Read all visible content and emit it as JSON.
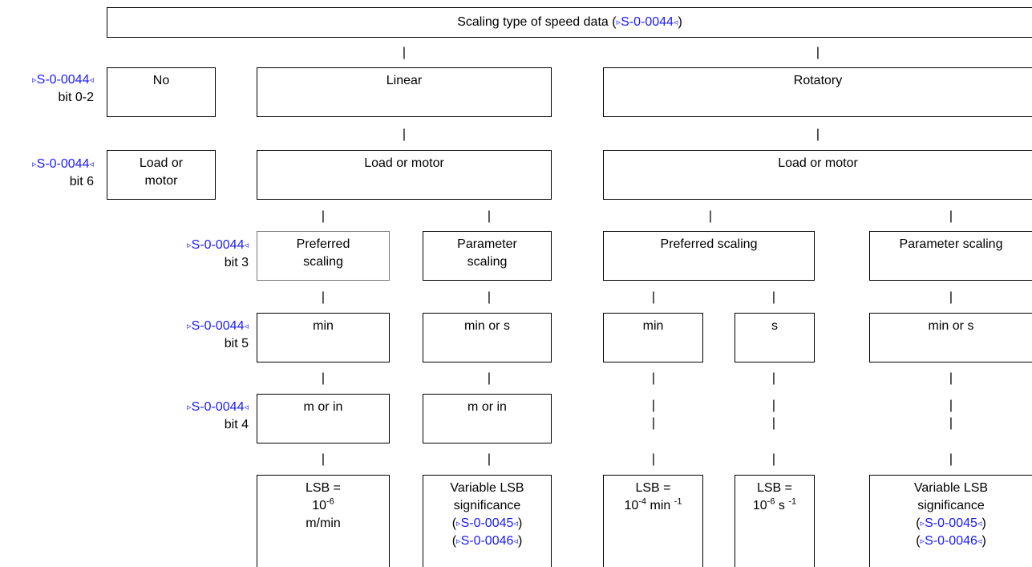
{
  "colors": {
    "link": "#1a1aff",
    "line": "#000000",
    "background": "#ffffff"
  },
  "header": {
    "prefix": "Scaling type of speed data (",
    "param": "S-0-0044",
    "suffix": ")"
  },
  "triangles": {
    "open": "▹",
    "close": "◃"
  },
  "pipe": "|",
  "side_labels": [
    {
      "param": "S-0-0044",
      "bit": "bit 0-2"
    },
    {
      "param": "S-0-0044",
      "bit": "bit 6"
    },
    {
      "param": "S-0-0044",
      "bit": "bit 3"
    },
    {
      "param": "S-0-0044",
      "bit": "bit 5"
    },
    {
      "param": "S-0-0044",
      "bit": "bit 4"
    }
  ],
  "row1": {
    "no": "No",
    "linear": "Linear",
    "rotatory": "Rotatory"
  },
  "row2": {
    "left": [
      "Load or",
      "motor"
    ],
    "linear": "Load or motor",
    "rotatory": "Load or motor"
  },
  "row3": {
    "lin_pref": [
      "Preferred",
      "scaling"
    ],
    "lin_param": [
      "Parameter",
      "scaling"
    ],
    "rot_pref": "Preferred scaling",
    "rot_param": "Parameter scaling"
  },
  "row4": {
    "lin_pref": "min",
    "lin_param": "min or s",
    "rot_min": "min",
    "rot_s": "s",
    "rot_param": "min or s"
  },
  "row5": {
    "lin_pref": "m or in",
    "lin_param": "m or in"
  },
  "row6": {
    "lin_pref": {
      "l1": "LSB =",
      "base": "10",
      "exp": "-6",
      "unit": "m/min"
    },
    "lin_param": {
      "l1": "Variable LSB",
      "l2": "significance",
      "p1": "S-0-0045",
      "p2": "S-0-0046"
    },
    "rot_min": {
      "l1": "LSB =",
      "base": "10",
      "exp": "-4",
      "unit": "min",
      "uexp": "-1"
    },
    "rot_s": {
      "l1": "LSB =",
      "base": "10",
      "exp": "-6",
      "unit": "s",
      "uexp": "-1"
    },
    "rot_param": {
      "l1": "Variable LSB",
      "l2": "significance",
      "p1": "S-0-0045",
      "p2": "S-0-0046"
    }
  }
}
